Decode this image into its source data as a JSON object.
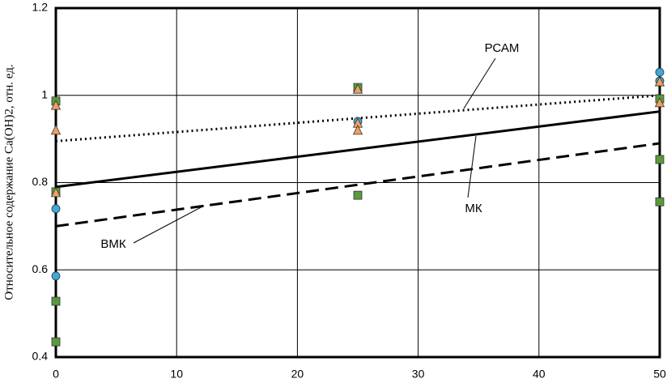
{
  "chart_data": {
    "type": "scatter",
    "y_label": "Относительное содержание Ca(OH)2, отн. ед.",
    "xlim": [
      0,
      50
    ],
    "xticks": [
      0,
      10,
      20,
      30,
      40,
      50
    ],
    "ylim": [
      0.4,
      1.2
    ],
    "yticks": [
      0.4,
      0.6,
      0.8,
      1,
      1.2
    ],
    "grid": true,
    "series": [
      {
        "marker": "square",
        "color": "#5a9a3c",
        "x": [
          0,
          0,
          0,
          0,
          25,
          25,
          50,
          50,
          50
        ],
        "values": [
          0.987,
          0.779,
          0.528,
          0.435,
          1.018,
          0.771,
          0.992,
          0.853,
          0.756
        ]
      },
      {
        "marker": "circle",
        "color": "#3fa9dc",
        "x": [
          0,
          0,
          25,
          50,
          50
        ],
        "values": [
          0.74,
          0.586,
          0.94,
          1.053,
          1.033
        ]
      },
      {
        "marker": "triangle",
        "color": "#f0a060",
        "x": [
          0,
          0,
          0,
          25,
          25,
          25,
          50,
          50
        ],
        "values": [
          0.977,
          0.92,
          0.777,
          1.014,
          0.936,
          0.92,
          1.031,
          0.983
        ]
      }
    ],
    "lines": [
      {
        "name": "РСАМ",
        "dash": "dotted",
        "x": [
          0,
          50
        ],
        "values": [
          0.895,
          1.0
        ]
      },
      {
        "name": "МК",
        "dash": "solid",
        "x": [
          0,
          50
        ],
        "values": [
          0.79,
          0.963
        ]
      },
      {
        "name": "ВМК",
        "dash": "dashed",
        "x": [
          0,
          50
        ],
        "values": [
          0.7,
          0.89
        ]
      }
    ]
  }
}
